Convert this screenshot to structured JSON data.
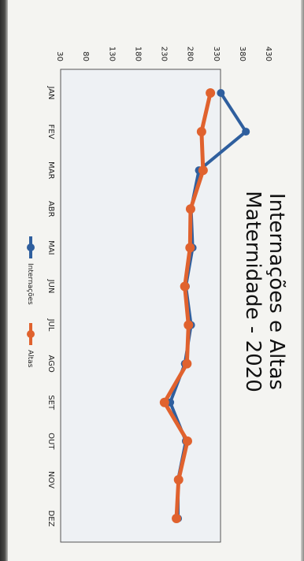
{
  "chart_data": {
    "type": "line",
    "title_line1": "Internações e Altas",
    "title_line2": "Maternidade - 2020",
    "categories": [
      "JAN",
      "FEV",
      "MAR",
      "ABR",
      "MAI",
      "JUN",
      "JUL",
      "AGO",
      "SET",
      "OUT",
      "NOV",
      "DEZ"
    ],
    "y_ticks": [
      "30",
      "80",
      "130",
      "180",
      "230",
      "280",
      "330",
      "380",
      "430"
    ],
    "ylim": [
      30,
      430
    ],
    "series": [
      {
        "name": "Internações",
        "color": "#2f5f9e",
        "values": [
          337,
          385,
          295,
          280,
          283,
          270,
          280,
          268,
          240,
          270,
          255,
          255
        ]
      },
      {
        "name": "Altas",
        "color": "#e0622e",
        "values": [
          317,
          300,
          303,
          279,
          278,
          268,
          275,
          272,
          229,
          273,
          256,
          252
        ]
      }
    ],
    "legend_position": "bottom",
    "grid": false
  }
}
